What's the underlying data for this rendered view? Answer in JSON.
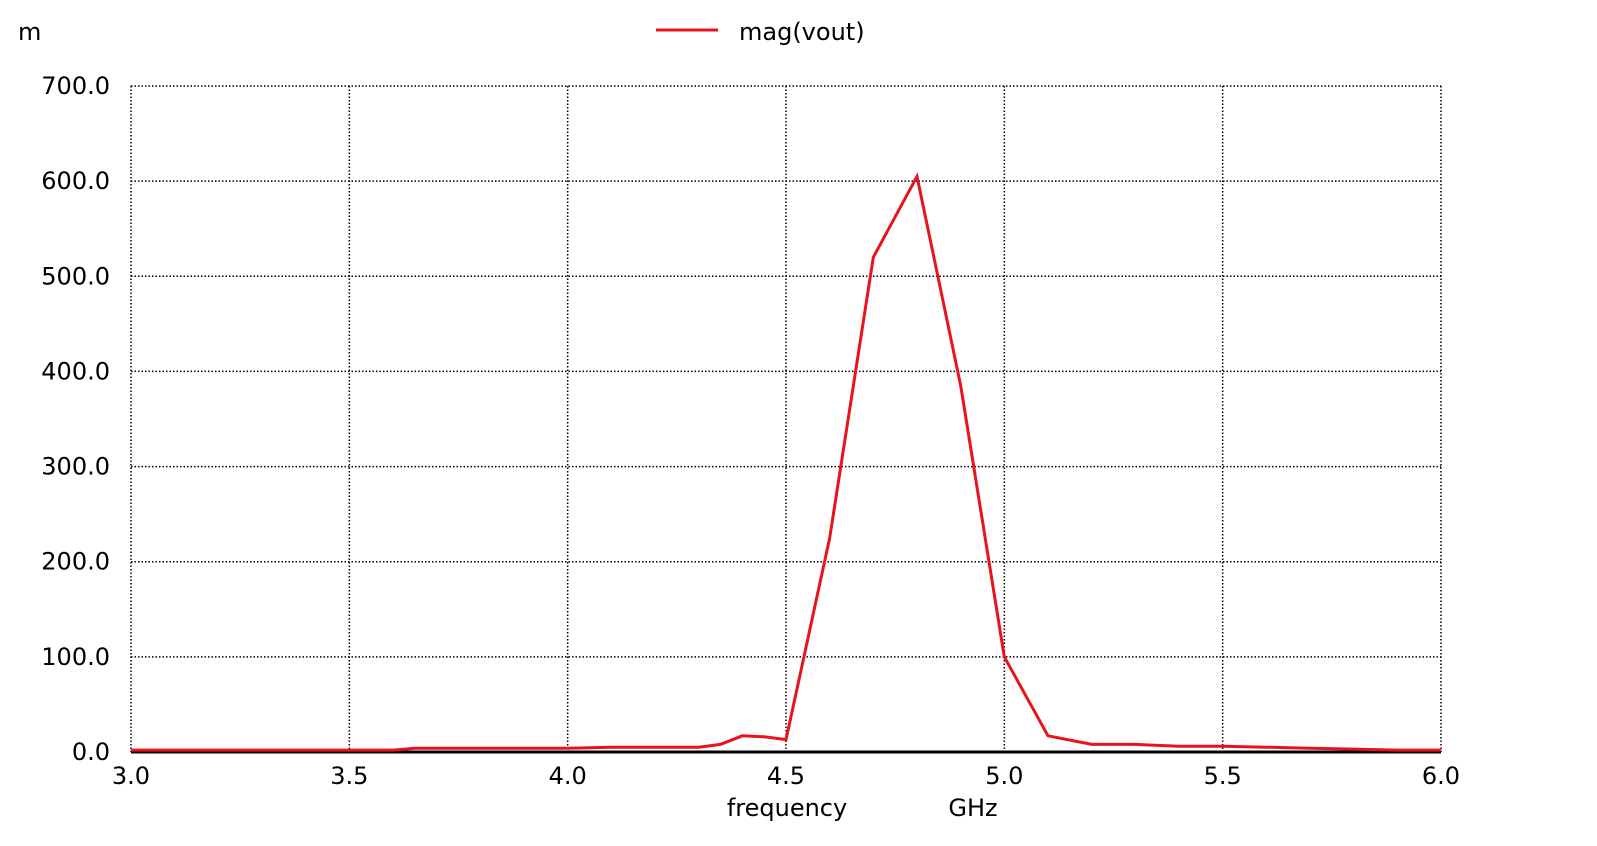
{
  "chart_data": {
    "type": "line",
    "y_unit_prefix": "m",
    "xlabel": "frequency",
    "xunit": "GHz",
    "xlim": [
      3.0,
      6.0
    ],
    "ylim": [
      0,
      700
    ],
    "grid": true,
    "legend_position": "top-center",
    "x_tick_labels": [
      "3.0",
      "3.5",
      "4.0",
      "4.5",
      "5.0",
      "5.5",
      "6.0"
    ],
    "y_tick_labels": [
      "0.0",
      "100.0",
      "200.0",
      "300.0",
      "400.0",
      "500.0",
      "600.0",
      "700.0"
    ],
    "series": [
      {
        "name": "mag(vout)",
        "color": "#e8141c",
        "x": [
          3.0,
          3.2,
          3.4,
          3.6,
          3.65,
          3.8,
          4.0,
          4.1,
          4.2,
          4.3,
          4.35,
          4.4,
          4.45,
          4.5,
          4.6,
          4.7,
          4.8,
          4.9,
          5.0,
          5.1,
          5.2,
          5.3,
          5.4,
          5.5,
          5.6,
          5.7,
          5.8,
          5.9,
          6.0
        ],
        "y": [
          2,
          2,
          2,
          2,
          4,
          4,
          4,
          5,
          5,
          5,
          8,
          17,
          16,
          13,
          225,
          520,
          605,
          385,
          100,
          17,
          8,
          8,
          6,
          6,
          5,
          4,
          3,
          2,
          2
        ]
      }
    ]
  }
}
